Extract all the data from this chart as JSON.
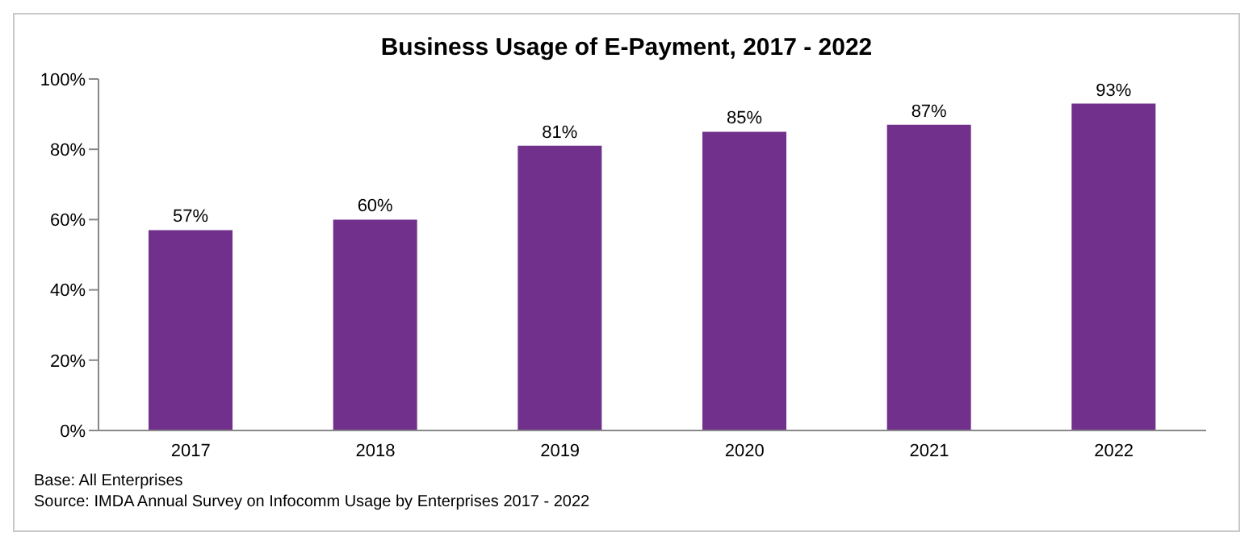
{
  "chart_data": {
    "type": "bar",
    "title": "Business Usage of E-Payment, 2017 - 2022",
    "categories": [
      "2017",
      "2018",
      "2019",
      "2020",
      "2021",
      "2022"
    ],
    "values": [
      57,
      60,
      81,
      85,
      87,
      93
    ],
    "value_labels": [
      "57%",
      "60%",
      "81%",
      "85%",
      "87%",
      "93%"
    ],
    "color": "#70308c",
    "ylim": [
      0,
      100
    ],
    "yticks": [
      {
        "value": 0,
        "label": "0%"
      },
      {
        "value": 20,
        "label": "20%"
      },
      {
        "value": 40,
        "label": "40%"
      },
      {
        "value": 60,
        "label": "60%"
      },
      {
        "value": 80,
        "label": "80%"
      },
      {
        "value": 100,
        "label": "100%"
      }
    ],
    "grid": false,
    "legend": false,
    "annotations": [
      "Base: All Enterprises",
      "Source: IMDA Annual Survey on Infocomm Usage by Enterprises 2017 - 2022"
    ]
  }
}
